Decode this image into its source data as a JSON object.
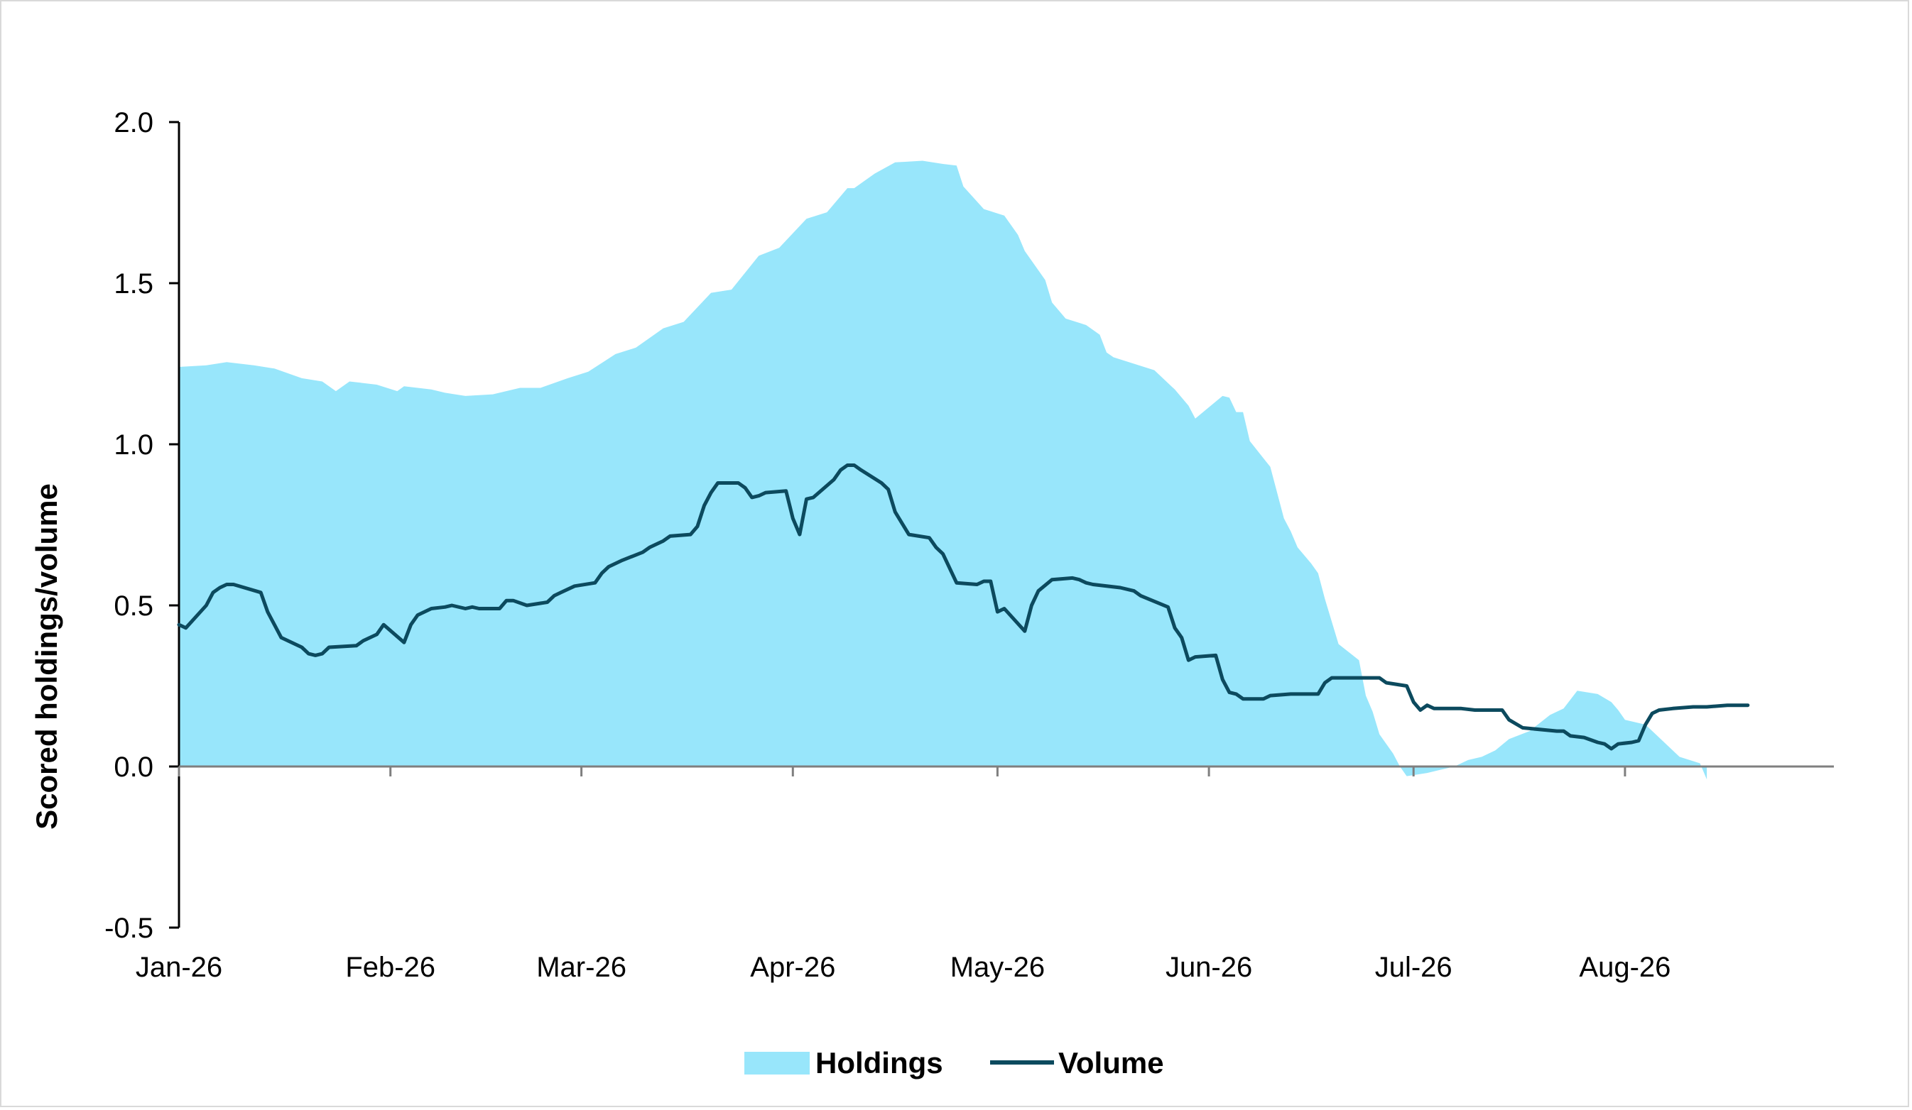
{
  "chart_data": {
    "type": "area",
    "title": "",
    "xlabel": "",
    "ylabel": "Scored holdings/volume",
    "ylim": [
      -0.5,
      2.0
    ],
    "yticks": [
      "-0.5",
      "0.0",
      "0.5",
      "1.0",
      "1.5",
      "2.0"
    ],
    "xlim": [
      "2026-01-01",
      "2026-08-31"
    ],
    "xticks": [
      {
        "date": "2026-01-01",
        "label": "Jan-26"
      },
      {
        "date": "2026-02-01",
        "label": "Feb-26"
      },
      {
        "date": "2026-03-01",
        "label": "Mar-26"
      },
      {
        "date": "2026-04-01",
        "label": "Apr-26"
      },
      {
        "date": "2026-05-01",
        "label": "May-26"
      },
      {
        "date": "2026-06-01",
        "label": "Jun-26"
      },
      {
        "date": "2026-07-01",
        "label": "Jul-26"
      },
      {
        "date": "2026-08-01",
        "label": "Aug-26"
      }
    ],
    "grid": false,
    "legend_position": "bottom",
    "series": [
      {
        "name": "Holdings",
        "type": "area",
        "color": "#98e6fb",
        "points": [
          [
            "2026-01-01",
            1.24
          ],
          [
            "2026-01-05",
            1.245
          ],
          [
            "2026-01-08",
            1.255
          ],
          [
            "2026-01-12",
            1.245
          ],
          [
            "2026-01-15",
            1.235
          ],
          [
            "2026-01-19",
            1.205
          ],
          [
            "2026-01-22",
            1.195
          ],
          [
            "2026-01-24",
            1.165
          ],
          [
            "2026-01-26",
            1.195
          ],
          [
            "2026-01-28",
            1.19
          ],
          [
            "2026-01-30",
            1.185
          ],
          [
            "2026-02-02",
            1.165
          ],
          [
            "2026-02-03",
            1.18
          ],
          [
            "2026-02-07",
            1.17
          ],
          [
            "2026-02-09",
            1.16
          ],
          [
            "2026-02-12",
            1.15
          ],
          [
            "2026-02-16",
            1.155
          ],
          [
            "2026-02-20",
            1.175
          ],
          [
            "2026-02-23",
            1.175
          ],
          [
            "2026-02-27",
            1.205
          ],
          [
            "2026-03-02",
            1.225
          ],
          [
            "2026-03-06",
            1.28
          ],
          [
            "2026-03-09",
            1.3
          ],
          [
            "2026-03-13",
            1.36
          ],
          [
            "2026-03-16",
            1.38
          ],
          [
            "2026-03-20",
            1.47
          ],
          [
            "2026-03-23",
            1.48
          ],
          [
            "2026-03-27",
            1.585
          ],
          [
            "2026-03-30",
            1.61
          ],
          [
            "2026-04-03",
            1.7
          ],
          [
            "2026-04-06",
            1.72
          ],
          [
            "2026-04-09",
            1.795
          ],
          [
            "2026-04-10",
            1.795
          ],
          [
            "2026-04-13",
            1.84
          ],
          [
            "2026-04-16",
            1.875
          ],
          [
            "2026-04-20",
            1.88
          ],
          [
            "2026-04-23",
            1.87
          ],
          [
            "2026-04-25",
            1.865
          ],
          [
            "2026-04-26",
            1.8
          ],
          [
            "2026-04-29",
            1.73
          ],
          [
            "2026-05-02",
            1.71
          ],
          [
            "2026-05-04",
            1.65
          ],
          [
            "2026-05-05",
            1.6
          ],
          [
            "2026-05-08",
            1.51
          ],
          [
            "2026-05-09",
            1.44
          ],
          [
            "2026-05-11",
            1.39
          ],
          [
            "2026-05-14",
            1.37
          ],
          [
            "2026-05-16",
            1.34
          ],
          [
            "2026-05-17",
            1.285
          ],
          [
            "2026-05-18",
            1.27
          ],
          [
            "2026-05-21",
            1.25
          ],
          [
            "2026-05-24",
            1.23
          ],
          [
            "2026-05-27",
            1.17
          ],
          [
            "2026-05-29",
            1.12
          ],
          [
            "2026-05-30",
            1.08
          ],
          [
            "2026-06-03",
            1.15
          ],
          [
            "2026-06-04",
            1.145
          ],
          [
            "2026-06-05",
            1.1
          ],
          [
            "2026-06-06",
            1.1
          ],
          [
            "2026-06-07",
            1.01
          ],
          [
            "2026-06-10",
            0.93
          ],
          [
            "2026-06-12",
            0.77
          ],
          [
            "2026-06-13",
            0.73
          ],
          [
            "2026-06-14",
            0.68
          ],
          [
            "2026-06-16",
            0.63
          ],
          [
            "2026-06-17",
            0.6
          ],
          [
            "2026-06-18",
            0.52
          ],
          [
            "2026-06-20",
            0.38
          ],
          [
            "2026-06-23",
            0.33
          ],
          [
            "2026-06-24",
            0.22
          ],
          [
            "2026-06-25",
            0.17
          ],
          [
            "2026-06-26",
            0.1
          ],
          [
            "2026-06-28",
            0.04
          ],
          [
            "2026-06-29",
            0.0
          ],
          [
            "2026-06-30",
            -0.03
          ],
          [
            "2026-07-03",
            -0.02
          ],
          [
            "2026-07-05",
            -0.01
          ],
          [
            "2026-07-07",
            0.0
          ],
          [
            "2026-07-09",
            0.02
          ],
          [
            "2026-07-11",
            0.03
          ],
          [
            "2026-07-13",
            0.05
          ],
          [
            "2026-07-15",
            0.085
          ],
          [
            "2026-07-18",
            0.11
          ],
          [
            "2026-07-21",
            0.16
          ],
          [
            "2026-07-23",
            0.18
          ],
          [
            "2026-07-25",
            0.235
          ],
          [
            "2026-07-28",
            0.225
          ],
          [
            "2026-07-30",
            0.2
          ],
          [
            "2026-07-31",
            0.175
          ],
          [
            "2026-08-01",
            0.145
          ],
          [
            "2026-08-04",
            0.13
          ],
          [
            "2026-08-06",
            0.09
          ],
          [
            "2026-08-09",
            0.03
          ],
          [
            "2026-08-12",
            0.01
          ],
          [
            "2026-08-13",
            -0.04
          ]
        ]
      },
      {
        "name": "Volume",
        "type": "line",
        "color": "#0c4a5e",
        "points": [
          [
            "2026-01-01",
            0.44
          ],
          [
            "2026-01-02",
            0.43
          ],
          [
            "2026-01-05",
            0.5
          ],
          [
            "2026-01-06",
            0.54
          ],
          [
            "2026-01-07",
            0.555
          ],
          [
            "2026-01-08",
            0.565
          ],
          [
            "2026-01-09",
            0.565
          ],
          [
            "2026-01-13",
            0.54
          ],
          [
            "2026-01-14",
            0.48
          ],
          [
            "2026-01-16",
            0.4
          ],
          [
            "2026-01-19",
            0.37
          ],
          [
            "2026-01-20",
            0.35
          ],
          [
            "2026-01-21",
            0.345
          ],
          [
            "2026-01-22",
            0.35
          ],
          [
            "2026-01-23",
            0.37
          ],
          [
            "2026-01-27",
            0.375
          ],
          [
            "2026-01-28",
            0.39
          ],
          [
            "2026-01-30",
            0.41
          ],
          [
            "2026-01-31",
            0.44
          ],
          [
            "2026-02-03",
            0.385
          ],
          [
            "2026-02-04",
            0.44
          ],
          [
            "2026-02-05",
            0.47
          ],
          [
            "2026-02-07",
            0.49
          ],
          [
            "2026-02-09",
            0.495
          ],
          [
            "2026-02-10",
            0.5
          ],
          [
            "2026-02-12",
            0.49
          ],
          [
            "2026-02-13",
            0.495
          ],
          [
            "2026-02-14",
            0.49
          ],
          [
            "2026-02-17",
            0.49
          ],
          [
            "2026-02-18",
            0.515
          ],
          [
            "2026-02-19",
            0.515
          ],
          [
            "2026-02-21",
            0.5
          ],
          [
            "2026-02-24",
            0.51
          ],
          [
            "2026-02-25",
            0.53
          ],
          [
            "2026-02-26",
            0.54
          ],
          [
            "2026-02-28",
            0.56
          ],
          [
            "2026-03-03",
            0.57
          ],
          [
            "2026-03-04",
            0.6
          ],
          [
            "2026-03-05",
            0.62
          ],
          [
            "2026-03-07",
            0.64
          ],
          [
            "2026-03-10",
            0.665
          ],
          [
            "2026-03-11",
            0.68
          ],
          [
            "2026-03-13",
            0.7
          ],
          [
            "2026-03-14",
            0.715
          ],
          [
            "2026-03-17",
            0.72
          ],
          [
            "2026-03-18",
            0.745
          ],
          [
            "2026-03-19",
            0.81
          ],
          [
            "2026-03-20",
            0.85
          ],
          [
            "2026-03-21",
            0.88
          ],
          [
            "2026-03-24",
            0.88
          ],
          [
            "2026-03-25",
            0.865
          ],
          [
            "2026-03-26",
            0.835
          ],
          [
            "2026-03-27",
            0.84
          ],
          [
            "2026-03-28",
            0.85
          ],
          [
            "2026-03-31",
            0.855
          ],
          [
            "2026-04-01",
            0.77
          ],
          [
            "2026-04-02",
            0.72
          ],
          [
            "2026-04-03",
            0.83
          ],
          [
            "2026-04-04",
            0.835
          ],
          [
            "2026-04-07",
            0.89
          ],
          [
            "2026-04-08",
            0.92
          ],
          [
            "2026-04-09",
            0.935
          ],
          [
            "2026-04-10",
            0.935
          ],
          [
            "2026-04-11",
            0.92
          ],
          [
            "2026-04-14",
            0.88
          ],
          [
            "2026-04-15",
            0.86
          ],
          [
            "2026-04-16",
            0.79
          ],
          [
            "2026-04-18",
            0.72
          ],
          [
            "2026-04-21",
            0.71
          ],
          [
            "2026-04-22",
            0.68
          ],
          [
            "2026-04-23",
            0.66
          ],
          [
            "2026-04-25",
            0.57
          ],
          [
            "2026-04-28",
            0.565
          ],
          [
            "2026-04-29",
            0.575
          ],
          [
            "2026-04-30",
            0.575
          ],
          [
            "2026-05-01",
            0.48
          ],
          [
            "2026-05-02",
            0.49
          ],
          [
            "2026-05-05",
            0.42
          ],
          [
            "2026-05-06",
            0.5
          ],
          [
            "2026-05-07",
            0.545
          ],
          [
            "2026-05-09",
            0.58
          ],
          [
            "2026-05-12",
            0.585
          ],
          [
            "2026-05-13",
            0.58
          ],
          [
            "2026-05-14",
            0.57
          ],
          [
            "2026-05-15",
            0.565
          ],
          [
            "2026-05-19",
            0.555
          ],
          [
            "2026-05-21",
            0.545
          ],
          [
            "2026-05-22",
            0.53
          ],
          [
            "2026-05-26",
            0.495
          ],
          [
            "2026-05-27",
            0.43
          ],
          [
            "2026-05-28",
            0.4
          ],
          [
            "2026-05-29",
            0.33
          ],
          [
            "2026-05-30",
            0.34
          ],
          [
            "2026-06-02",
            0.345
          ],
          [
            "2026-06-03",
            0.27
          ],
          [
            "2026-06-04",
            0.23
          ],
          [
            "2026-06-05",
            0.225
          ],
          [
            "2026-06-06",
            0.21
          ],
          [
            "2026-06-09",
            0.21
          ],
          [
            "2026-06-10",
            0.22
          ],
          [
            "2026-06-13",
            0.225
          ],
          [
            "2026-06-16",
            0.225
          ],
          [
            "2026-06-17",
            0.225
          ],
          [
            "2026-06-18",
            0.26
          ],
          [
            "2026-06-19",
            0.275
          ],
          [
            "2026-06-26",
            0.275
          ],
          [
            "2026-06-27",
            0.26
          ],
          [
            "2026-06-30",
            0.25
          ],
          [
            "2026-07-01",
            0.2
          ],
          [
            "2026-07-02",
            0.175
          ],
          [
            "2026-07-03",
            0.19
          ],
          [
            "2026-07-04",
            0.18
          ],
          [
            "2026-07-08",
            0.18
          ],
          [
            "2026-07-10",
            0.175
          ],
          [
            "2026-07-14",
            0.175
          ],
          [
            "2026-07-15",
            0.145
          ],
          [
            "2026-07-17",
            0.12
          ],
          [
            "2026-07-22",
            0.11
          ],
          [
            "2026-07-23",
            0.11
          ],
          [
            "2026-07-24",
            0.095
          ],
          [
            "2026-07-26",
            0.09
          ],
          [
            "2026-07-28",
            0.075
          ],
          [
            "2026-07-29",
            0.07
          ],
          [
            "2026-07-30",
            0.055
          ],
          [
            "2026-07-31",
            0.07
          ],
          [
            "2026-08-02",
            0.075
          ],
          [
            "2026-08-03",
            0.08
          ],
          [
            "2026-08-04",
            0.13
          ],
          [
            "2026-08-05",
            0.165
          ],
          [
            "2026-08-06",
            0.175
          ],
          [
            "2026-08-08",
            0.18
          ],
          [
            "2026-08-11",
            0.185
          ],
          [
            "2026-08-13",
            0.185
          ],
          [
            "2026-08-16",
            0.19
          ],
          [
            "2026-08-19",
            0.19
          ]
        ]
      }
    ]
  }
}
